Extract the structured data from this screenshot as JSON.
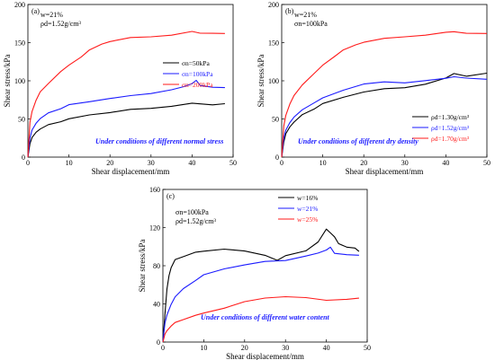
{
  "chart_data": [
    {
      "type": "line",
      "panel": "(a)",
      "conditions": [
        "w=21%",
        "ρd=1.52g/cm³"
      ],
      "xlabel": "Shear displacement/mm",
      "ylabel": "Shear stress/kPa",
      "xlim": [
        0,
        50
      ],
      "ylim": [
        0,
        200
      ],
      "xticks": [
        "0",
        "10",
        "20",
        "30",
        "40",
        "50"
      ],
      "yticks": [
        "0",
        "50",
        "100",
        "150",
        "200"
      ],
      "legend_position": "right",
      "annotation": "Under conditions of different normal stress",
      "series": [
        {
          "name": "σn=50kPa",
          "color": "#000000",
          "x": [
            0,
            0.5,
            1,
            2,
            3,
            5,
            8,
            10,
            15,
            20,
            25,
            30,
            35,
            40,
            45,
            48
          ],
          "y": [
            0,
            18,
            25,
            33,
            37,
            42,
            47,
            50,
            55,
            59,
            62,
            64,
            67,
            70,
            69,
            70
          ]
        },
        {
          "name": "σn=100kPa",
          "color": "#1a1aff",
          "x": [
            0,
            0.5,
            1,
            2,
            3,
            5,
            8,
            10,
            15,
            20,
            25,
            30,
            35,
            38,
            40,
            41,
            42,
            45,
            48
          ],
          "y": [
            0,
            25,
            35,
            45,
            50,
            58,
            64,
            68,
            73,
            77,
            80,
            84,
            88,
            92,
            97,
            100,
            94,
            92,
            91
          ]
        },
        {
          "name": "σn=200kPa",
          "color": "#ff1a1a",
          "x": [
            0,
            0.5,
            1,
            2,
            3,
            5,
            8,
            10,
            13,
            15,
            18,
            20,
            25,
            30,
            35,
            40,
            42,
            45,
            48
          ],
          "y": [
            0,
            45,
            60,
            75,
            85,
            97,
            112,
            120,
            132,
            140,
            148,
            152,
            156,
            158,
            160,
            164,
            163,
            162,
            162
          ]
        }
      ]
    },
    {
      "type": "line",
      "panel": "(b)",
      "conditions": [
        "w=21%",
        "σn=100kPa"
      ],
      "xlabel": "Shear displacement/mm",
      "ylabel": "Shear stress/kPa",
      "xlim": [
        0,
        50
      ],
      "ylim": [
        0,
        200
      ],
      "xticks": [
        "0",
        "10",
        "20",
        "30",
        "40",
        "50"
      ],
      "yticks": [
        "0",
        "50",
        "100",
        "150",
        "200"
      ],
      "legend_position": "right",
      "annotation": "Under conditions of different dry density",
      "series": [
        {
          "name": "ρd=1.30g/cm³",
          "color": "#000000",
          "x": [
            0,
            0.5,
            1,
            2,
            3,
            5,
            8,
            10,
            15,
            20,
            25,
            30,
            35,
            40,
            42,
            45,
            50
          ],
          "y": [
            0,
            20,
            30,
            40,
            46,
            55,
            64,
            70,
            78,
            86,
            89,
            91,
            96,
            103,
            110,
            106,
            110
          ]
        },
        {
          "name": "ρd=1.52g/cm³",
          "color": "#1a1aff",
          "x": [
            0,
            0.5,
            1,
            2,
            3,
            5,
            8,
            10,
            15,
            20,
            25,
            30,
            35,
            40,
            42,
            45,
            50
          ],
          "y": [
            0,
            25,
            35,
            46,
            52,
            62,
            72,
            77,
            88,
            96,
            98,
            98,
            100,
            103,
            106,
            103,
            102
          ]
        },
        {
          "name": "ρd=1.70g/cm³",
          "color": "#ff1a1a",
          "x": [
            0,
            0.5,
            1,
            2,
            3,
            5,
            8,
            10,
            13,
            15,
            18,
            20,
            25,
            30,
            35,
            40,
            42,
            45,
            50
          ],
          "y": [
            0,
            40,
            55,
            70,
            80,
            95,
            110,
            120,
            133,
            140,
            147,
            151,
            155,
            158,
            160,
            163,
            165,
            162,
            162
          ]
        }
      ]
    },
    {
      "type": "line",
      "panel": "(c)",
      "conditions": [
        "σn=100kPa",
        "ρd=1.52g/cm³"
      ],
      "xlabel": "Shear displacement/mm",
      "ylabel": "Shear stress/kPa",
      "xlim": [
        0,
        50
      ],
      "ylim": [
        0,
        160
      ],
      "xticks": [
        "0",
        "10",
        "20",
        "30",
        "40",
        "50"
      ],
      "yticks": [
        "0",
        "40",
        "80",
        "120",
        "160"
      ],
      "legend_position": "top-right",
      "annotation": "Under conditions of different water content",
      "series": [
        {
          "name": "w=16%",
          "color": "#000000",
          "x": [
            0,
            0.5,
            1,
            1.5,
            2,
            3,
            5,
            8,
            10,
            15,
            20,
            25,
            28,
            30,
            35,
            38,
            40,
            41,
            42,
            43,
            45,
            47,
            48
          ],
          "y": [
            0,
            30,
            55,
            70,
            78,
            86,
            90,
            94,
            95,
            98,
            95,
            91,
            86,
            90,
            96,
            105,
            118,
            115,
            110,
            103,
            100,
            98,
            95
          ]
        },
        {
          "name": "w=21%",
          "color": "#1a1aff",
          "x": [
            0,
            0.5,
            1,
            2,
            3,
            5,
            8,
            10,
            15,
            20,
            25,
            30,
            35,
            38,
            40,
            41,
            42,
            45,
            48
          ],
          "y": [
            0,
            20,
            28,
            40,
            47,
            56,
            65,
            70,
            77,
            81,
            84,
            86,
            90,
            93,
            97,
            99,
            93,
            92,
            91
          ]
        },
        {
          "name": "w=25%",
          "color": "#ff1a1a",
          "x": [
            0,
            0.5,
            1,
            2,
            3,
            5,
            8,
            10,
            15,
            20,
            25,
            30,
            35,
            40,
            45,
            48
          ],
          "y": [
            0,
            8,
            12,
            17,
            20,
            24,
            28,
            30,
            36,
            42,
            46,
            48,
            46,
            44,
            45,
            46
          ]
        }
      ]
    }
  ]
}
